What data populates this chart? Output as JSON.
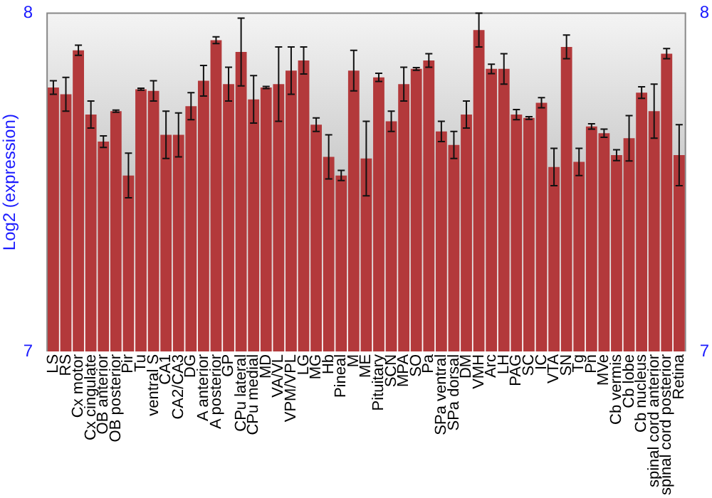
{
  "chart_data": {
    "type": "bar",
    "ylabel": "Log2 (expression)",
    "categories": [
      "LS",
      "RS",
      "Cx motor",
      "Cx cingulate",
      "OB anterior",
      "OB posterior",
      "Pir",
      "Tu",
      "ventral S",
      "CA1",
      "CA2/CA3",
      "DG",
      "A anterior",
      "A posterior",
      "GP",
      "CPu lateral",
      "CPu medial",
      "MD",
      "VA/VL",
      "VPM/VPL",
      "LG",
      "MG",
      "Hb",
      "Pineal",
      "M",
      "ME",
      "Pituitary",
      "SCN",
      "MPA",
      "SO",
      "Pa",
      "SPa ventral",
      "SPa dorsal",
      "DM",
      "VMH",
      "Arc",
      "LH",
      "PAG",
      "SC",
      "IC",
      "VTA",
      "SN",
      "Tg",
      "Pn",
      "MVe",
      "Cb vermis",
      "Cb lobe",
      "Cb nucleus",
      "spinal cord anterior",
      "spinal cord posterior",
      "Retina"
    ],
    "values": [
      7.78,
      7.76,
      7.89,
      7.7,
      7.62,
      7.71,
      7.52,
      7.775,
      7.77,
      7.64,
      7.64,
      7.725,
      7.8,
      7.92,
      7.79,
      7.885,
      7.745,
      7.78,
      7.79,
      7.83,
      7.86,
      7.67,
      7.575,
      7.52,
      7.83,
      7.57,
      7.81,
      7.68,
      7.79,
      7.835,
      7.86,
      7.65,
      7.61,
      7.7,
      7.95,
      7.835,
      7.835,
      7.7,
      7.69,
      7.735,
      7.545,
      7.9,
      7.56,
      7.665,
      7.645,
      7.58,
      7.63,
      7.765,
      7.71,
      7.88,
      7.58
    ],
    "errors": [
      0.02,
      0.05,
      0.015,
      0.04,
      0.017,
      0.003,
      0.066,
      0.003,
      0.03,
      0.07,
      0.065,
      0.04,
      0.045,
      0.01,
      0.05,
      0.1,
      0.07,
      0.003,
      0.11,
      0.07,
      0.04,
      0.02,
      0.065,
      0.015,
      0.06,
      0.11,
      0.012,
      0.03,
      0.05,
      0.004,
      0.02,
      0.03,
      0.04,
      0.04,
      0.05,
      0.014,
      0.045,
      0.015,
      0.004,
      0.015,
      0.055,
      0.035,
      0.04,
      0.008,
      0.012,
      0.016,
      0.067,
      0.017,
      0.08,
      0.015,
      0.09
    ],
    "color": "#b3393b",
    "ylim": [
      7,
      8
    ],
    "yticks": [
      7,
      8
    ],
    "y2lim": [
      7,
      8
    ],
    "y2ticks": [
      7,
      8
    ],
    "grid": false,
    "legend": false
  }
}
